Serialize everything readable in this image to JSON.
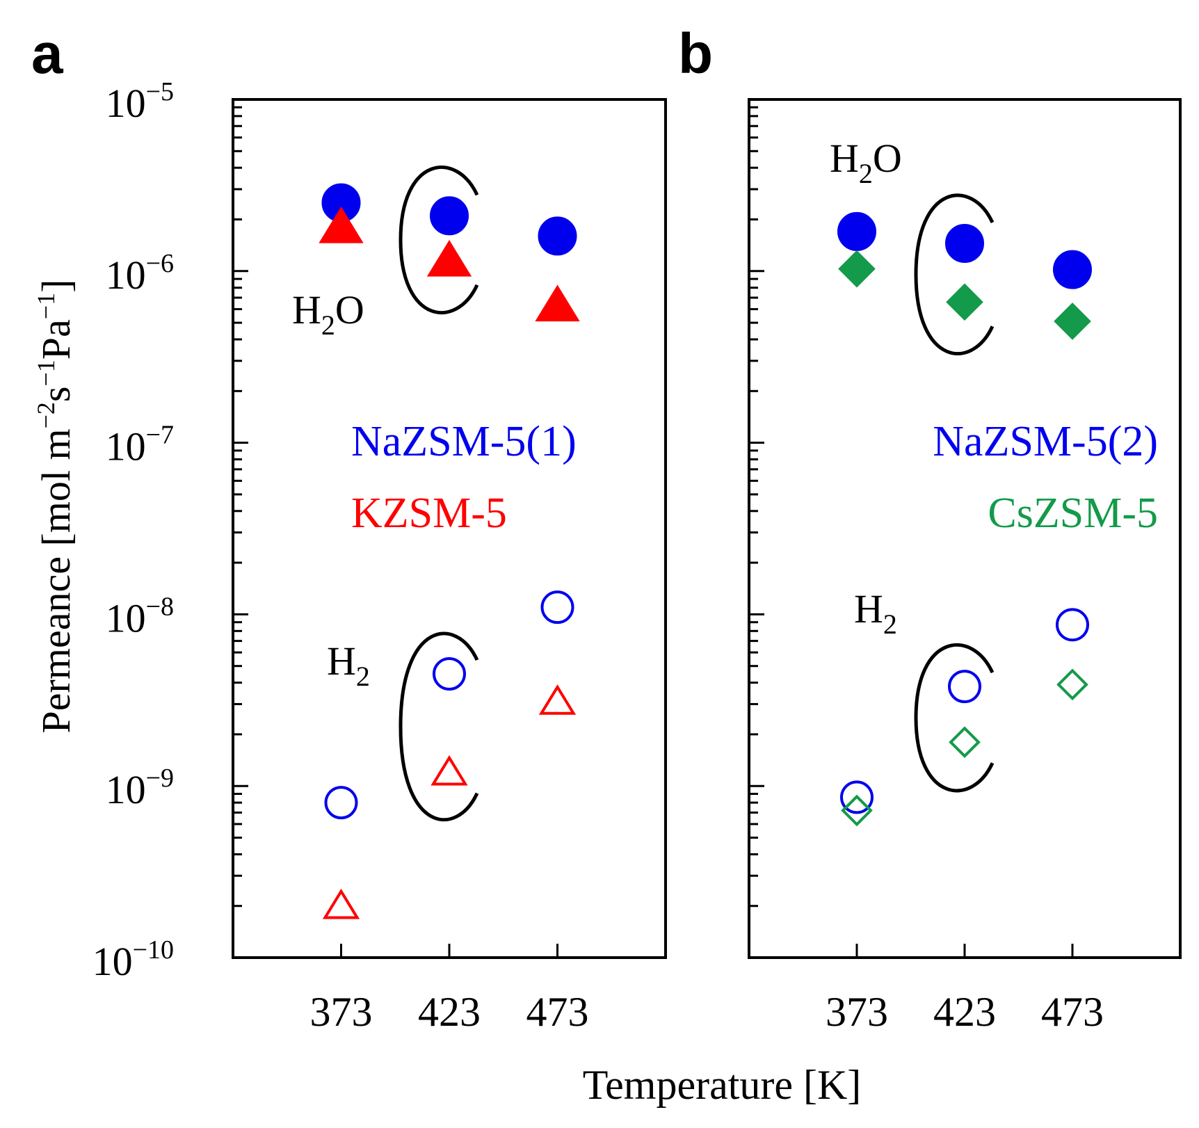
{
  "x_axis_label": "Temperature [K]",
  "y_axis_label": {
    "main": "Permeance [mol m",
    "sup1": "−2",
    "mid1": "s",
    "sup2": "−1",
    "mid2": "Pa",
    "sup3": "−1",
    "end": "]"
  },
  "y_tick_labels": [
    {
      "base": "10",
      "exp": "−5",
      "value": 1e-05
    },
    {
      "base": "10",
      "exp": "−6",
      "value": 1e-06
    },
    {
      "base": "10",
      "exp": "−7",
      "value": 1e-07
    },
    {
      "base": "10",
      "exp": "−8",
      "value": 1e-08
    },
    {
      "base": "10",
      "exp": "−9",
      "value": 1e-09
    },
    {
      "base": "10",
      "exp": "−10",
      "value": 1e-10
    }
  ],
  "colors": {
    "blue": "#0000ee",
    "red": "#ff0000",
    "green": "#139a4a",
    "axis": "#000000"
  },
  "chart_data": [
    {
      "type": "scatter",
      "panel_label": "a",
      "yscale": "log",
      "ylim": [
        1e-10,
        1e-05
      ],
      "xlim": [
        323,
        523
      ],
      "xticks": [
        373,
        423,
        473
      ],
      "xlabel": "Temperature [K]",
      "ylabel": "Permeance [mol m−2s−1Pa−1]",
      "legend": [
        {
          "label": "NaZSM-5(1)",
          "color": "#0000ee"
        },
        {
          "label": "KZSM-5",
          "color": "#ff0000"
        }
      ],
      "gas_labels": [
        {
          "base": "H",
          "sub": "2",
          "tail": "O",
          "near": "H2O"
        },
        {
          "base": "H",
          "sub": "2",
          "tail": "",
          "near": "H2"
        }
      ],
      "series": [
        {
          "name": "NaZSM-5(1) H2O",
          "marker": "circle",
          "filled": true,
          "color": "#0000ee",
          "x": [
            373,
            423,
            473
          ],
          "y": [
            2.5e-06,
            2.1e-06,
            1.6e-06
          ]
        },
        {
          "name": "KZSM-5 H2O",
          "marker": "triangle",
          "filled": true,
          "color": "#ff0000",
          "x": [
            373,
            423,
            473
          ],
          "y": [
            1.8e-06,
            1.15e-06,
            6.3e-07
          ]
        },
        {
          "name": "NaZSM-5(1) H2",
          "marker": "circle",
          "filled": false,
          "color": "#0000ee",
          "x": [
            373,
            423,
            473
          ],
          "y": [
            8e-10,
            4.5e-09,
            1.1e-08
          ]
        },
        {
          "name": "KZSM-5 H2",
          "marker": "triangle",
          "filled": false,
          "color": "#ff0000",
          "x": [
            373,
            423,
            473
          ],
          "y": [
            2e-10,
            1.2e-09,
            3.1e-09
          ]
        }
      ]
    },
    {
      "type": "scatter",
      "panel_label": "b",
      "yscale": "log",
      "ylim": [
        1e-10,
        1e-05
      ],
      "xlim": [
        323,
        523
      ],
      "xticks": [
        373,
        423,
        473
      ],
      "xlabel": "Temperature [K]",
      "ylabel": "Permeance [mol m−2s−1Pa−1]",
      "legend": [
        {
          "label": "NaZSM-5(2)",
          "color": "#0000ee"
        },
        {
          "label": "CsZSM-5",
          "color": "#139a4a"
        }
      ],
      "gas_labels": [
        {
          "base": "H",
          "sub": "2",
          "tail": "O",
          "near": "H2O"
        },
        {
          "base": "H",
          "sub": "2",
          "tail": "",
          "near": "H2"
        }
      ],
      "series": [
        {
          "name": "NaZSM-5(2) H2O",
          "marker": "circle",
          "filled": true,
          "color": "#0000ee",
          "x": [
            373,
            423,
            473
          ],
          "y": [
            1.7e-06,
            1.45e-06,
            1.02e-06
          ]
        },
        {
          "name": "CsZSM-5 H2O",
          "marker": "diamond",
          "filled": true,
          "color": "#139a4a",
          "x": [
            373,
            423,
            473
          ],
          "y": [
            1.03e-06,
            6.6e-07,
            5.1e-07
          ]
        },
        {
          "name": "NaZSM-5(2) H2",
          "marker": "circle",
          "filled": false,
          "color": "#0000ee",
          "x": [
            373,
            423,
            473
          ],
          "y": [
            8.6e-10,
            3.8e-09,
            8.7e-09
          ]
        },
        {
          "name": "CsZSM-5 H2",
          "marker": "diamond",
          "filled": false,
          "color": "#139a4a",
          "x": [
            373,
            423,
            473
          ],
          "y": [
            7.2e-10,
            1.8e-09,
            3.9e-09
          ]
        }
      ]
    }
  ]
}
